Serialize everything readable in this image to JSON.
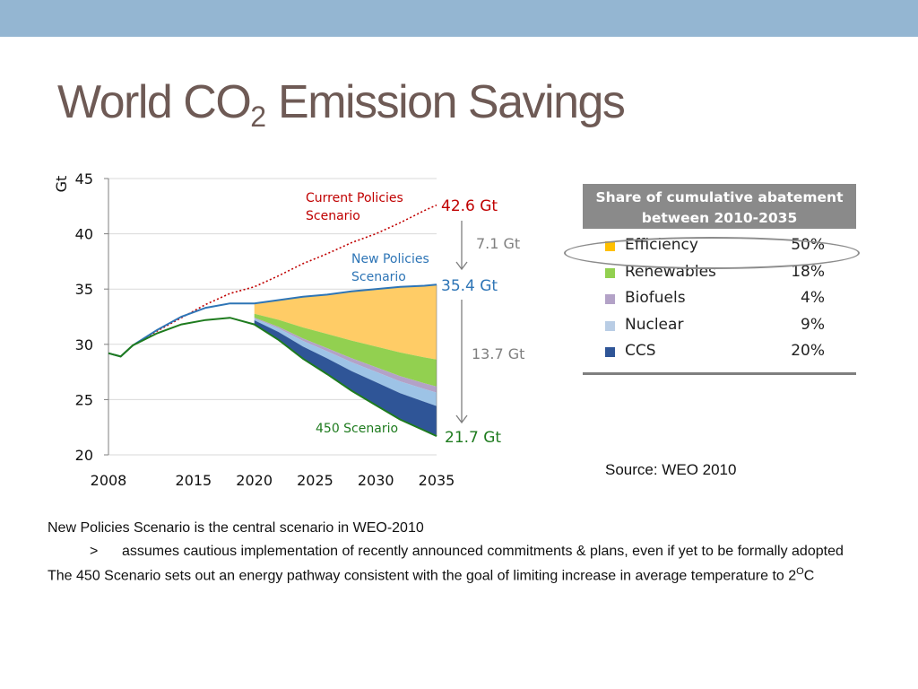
{
  "slide": {
    "title_main": "World CO",
    "title_sub": "2",
    "title_rest": " Emission Savings"
  },
  "chart_data": {
    "type": "area",
    "ylabel": "Gt",
    "ylim": [
      20,
      45
    ],
    "yticks": [
      20,
      25,
      30,
      35,
      40,
      45
    ],
    "xlim": [
      2008,
      2035
    ],
    "xticks": [
      2008,
      2015,
      2020,
      2025,
      2030,
      2035
    ],
    "grid": true,
    "x": [
      2008,
      2009,
      2010,
      2012,
      2014,
      2016,
      2018,
      2020,
      2022,
      2024,
      2026,
      2028,
      2030,
      2032,
      2034,
      2035
    ],
    "series": [
      {
        "name": "Current Policies Scenario",
        "style": "dotted-line",
        "color": "#c00000",
        "values": [
          29.2,
          28.9,
          29.9,
          31.2,
          32.4,
          33.6,
          34.6,
          35.2,
          36.2,
          37.3,
          38.2,
          39.2,
          40.0,
          41.0,
          42.1,
          42.6
        ]
      },
      {
        "name": "New Policies Scenario",
        "style": "line",
        "color": "#2e75b6",
        "values": [
          29.2,
          28.9,
          29.9,
          31.3,
          32.5,
          33.3,
          33.7,
          33.7,
          34.0,
          34.3,
          34.5,
          34.8,
          35.0,
          35.2,
          35.3,
          35.4
        ]
      },
      {
        "name": "450 Scenario",
        "style": "line",
        "color": "#1e7b1e",
        "values": [
          29.2,
          28.9,
          29.9,
          31.0,
          31.8,
          32.2,
          32.4,
          31.8,
          30.4,
          28.7,
          27.3,
          25.8,
          24.5,
          23.2,
          22.2,
          21.7
        ]
      }
    ],
    "wedges": [
      {
        "name": "Efficiency",
        "color": "#ffc000",
        "fill": "#ffcc66",
        "share": 50
      },
      {
        "name": "Renewables",
        "color": "#92d050",
        "fill": "#92d050",
        "share": 18
      },
      {
        "name": "Biofuels",
        "color": "#b3a2c7",
        "fill": "#b3a2c7",
        "share": 4
      },
      {
        "name": "Nuclear",
        "color": "#b9cde5",
        "fill": "#9dc3e6",
        "share": 9
      },
      {
        "name": "CCS",
        "color": "#2f5597",
        "fill": "#2f5597",
        "share": 20
      }
    ],
    "annotations": {
      "current_line1": "Current Policies",
      "current_line2": "Scenario",
      "new_line1": "New Policies",
      "new_line2": "Scenario",
      "s450": "450 Scenario",
      "val_current": "42.6 Gt",
      "val_new": "35.4 Gt",
      "val_450": "21.7 Gt",
      "gap_top": "7.1 Gt",
      "gap_bottom": "13.7 Gt"
    }
  },
  "share_panel": {
    "header_line1": "Share of cumulative abatement",
    "header_line2": "between 2010-2035",
    "rows": [
      {
        "label": "Efficiency",
        "value": "50%",
        "color": "#ffc000"
      },
      {
        "label": "Renewables",
        "value": "18%",
        "color": "#92d050"
      },
      {
        "label": "Biofuels",
        "value": "4%",
        "color": "#b3a2c7"
      },
      {
        "label": "Nuclear",
        "value": "9%",
        "color": "#b9cde5"
      },
      {
        "label": "CCS",
        "value": "20%",
        "color": "#2f5597"
      }
    ]
  },
  "source": "Source: WEO 2010",
  "notes": {
    "line1": "New Policies Scenario is the central scenario in WEO-2010",
    "bullet": ">",
    "line2": "assumes cautious implementation of recently announced commitments & plans, even if yet to be formally adopted",
    "line3_main": "The 450 Scenario sets out an energy pathway consistent with the goal of limiting increase in average temperature to 2",
    "line3_sup": "O",
    "line3_end": "C"
  }
}
